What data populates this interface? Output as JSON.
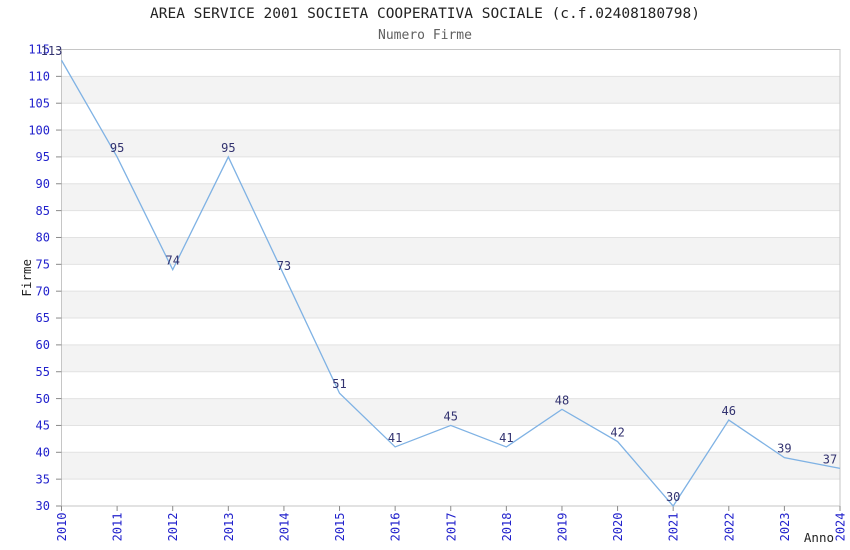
{
  "header": {
    "title": "AREA SERVICE 2001 SOCIETA COOPERATIVA SOCIALE (c.f.02408180798)",
    "subtitle": "Numero Firme"
  },
  "chart_data": {
    "type": "line",
    "title": "AREA SERVICE 2001 SOCIETA COOPERATIVA SOCIALE (c.f.02408180798)",
    "subtitle": "Numero Firme",
    "categories": [
      "2010",
      "2011",
      "2012",
      "2013",
      "2014",
      "2015",
      "2016",
      "2017",
      "2018",
      "2019",
      "2020",
      "2021",
      "2022",
      "2023",
      "2024"
    ],
    "values": [
      113,
      95,
      74,
      95,
      73,
      51,
      41,
      45,
      41,
      48,
      42,
      30,
      46,
      39,
      37
    ],
    "xlabel": "Anno",
    "ylabel": "Firme",
    "ylim": [
      30,
      115
    ],
    "yticks": [
      30,
      35,
      40,
      45,
      50,
      55,
      60,
      65,
      70,
      75,
      80,
      85,
      90,
      95,
      100,
      105,
      110,
      115
    ],
    "grid": true,
    "banded_background": true,
    "legend_position": "none",
    "data_labels": true,
    "colors": {
      "line": "#7fb2e4",
      "tick_label": "#2222cc",
      "data_label": "#333370",
      "band": "#f3f3f3",
      "grid": "#e2e2e2",
      "border": "#c6c6c6",
      "tick_mark": "#8a8a8a",
      "title": "#222222",
      "subtitle": "#606060",
      "axis_title": "#222222",
      "background": "#ffffff"
    }
  }
}
